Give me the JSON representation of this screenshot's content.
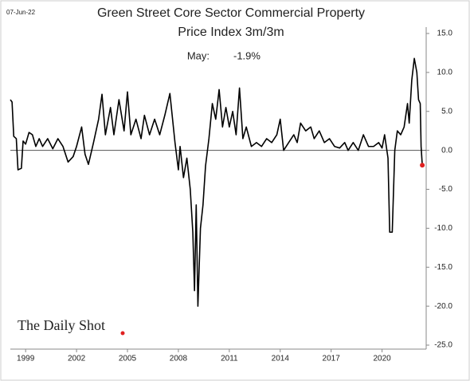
{
  "chart_data": {
    "type": "line",
    "date": "07-Jun-22",
    "title": "Green Street Core Sector Commercial Property",
    "subtitle": "Price Index 3m/3m",
    "annotation": {
      "label": "May:",
      "text": "-1.9%"
    },
    "source": "The Daily Shot",
    "x": [
      1998.1,
      1998.2,
      1998.3,
      1998.45,
      1998.55,
      1998.75,
      1998.85,
      1999.0,
      1999.2,
      1999.4,
      1999.6,
      1999.8,
      2000.0,
      2000.3,
      2000.6,
      2000.9,
      2001.2,
      2001.5,
      2001.8,
      2002.0,
      2002.3,
      2002.5,
      2002.7,
      2003.0,
      2003.3,
      2003.5,
      2003.7,
      2004.0,
      2004.2,
      2004.5,
      2004.8,
      2005.0,
      2005.2,
      2005.5,
      2005.8,
      2006.0,
      2006.3,
      2006.6,
      2006.9,
      2007.2,
      2007.5,
      2007.8,
      2008.0,
      2008.1,
      2008.3,
      2008.5,
      2008.7,
      2008.85,
      2008.95,
      2009.05,
      2009.15,
      2009.3,
      2009.45,
      2009.6,
      2009.8,
      2010.0,
      2010.2,
      2010.4,
      2010.6,
      2010.8,
      2011.0,
      2011.2,
      2011.4,
      2011.6,
      2011.8,
      2012.0,
      2012.3,
      2012.6,
      2012.9,
      2013.2,
      2013.5,
      2013.8,
      2014.0,
      2014.2,
      2014.5,
      2014.8,
      2015.0,
      2015.2,
      2015.5,
      2015.8,
      2016.0,
      2016.3,
      2016.6,
      2016.9,
      2017.2,
      2017.5,
      2017.8,
      2018.0,
      2018.3,
      2018.6,
      2018.9,
      2019.2,
      2019.5,
      2019.8,
      2020.0,
      2020.15,
      2020.35,
      2020.45,
      2020.6,
      2020.75,
      2020.9,
      2021.1,
      2021.3,
      2021.5,
      2021.6,
      2021.75,
      2021.9,
      2022.05,
      2022.15,
      2022.25,
      2022.3,
      2022.37
    ],
    "series": [
      {
        "name": "Price Index 3m/3m",
        "color": "#000000",
        "end_color": "#e02020",
        "values": [
          6.5,
          6.2,
          1.8,
          1.5,
          -2.5,
          -2.3,
          1.2,
          0.8,
          2.3,
          2.0,
          0.5,
          1.5,
          0.5,
          1.5,
          0.2,
          1.5,
          0.5,
          -1.5,
          -0.8,
          0.5,
          3.0,
          -0.5,
          -1.8,
          1.0,
          4.0,
          7.2,
          2.0,
          5.5,
          2.0,
          6.5,
          2.5,
          7.5,
          2.0,
          4.0,
          1.5,
          4.5,
          2.0,
          4.0,
          2.0,
          4.5,
          7.3,
          1.0,
          -2.5,
          0.5,
          -3.5,
          -1.0,
          -5.0,
          -10.5,
          -18.0,
          -7.0,
          -20.0,
          -10.0,
          -7.0,
          -2.0,
          1.5,
          6.0,
          4.0,
          7.8,
          3.0,
          5.5,
          3.0,
          5.0,
          2.0,
          8.0,
          1.5,
          3.0,
          0.5,
          1.0,
          0.5,
          1.5,
          1.0,
          2.0,
          4.0,
          0.0,
          1.0,
          2.0,
          1.0,
          3.5,
          2.5,
          3.0,
          1.5,
          2.5,
          1.0,
          1.5,
          0.5,
          0.3,
          1.0,
          0.0,
          1.0,
          0.0,
          2.0,
          0.5,
          0.5,
          1.0,
          0.3,
          2.0,
          -1.0,
          -10.5,
          -10.5,
          0.0,
          2.5,
          2.0,
          3.0,
          6.0,
          3.5,
          9.0,
          11.8,
          10.0,
          6.5,
          6.0,
          0.5,
          -1.9
        ]
      }
    ],
    "xlim": [
      1998.1,
      2022.6
    ],
    "xticks": [
      1999,
      2002,
      2005,
      2008,
      2011,
      2014,
      2017,
      2020
    ],
    "ylim": [
      -25,
      15
    ],
    "yticks": [
      {
        "value": 15,
        "label": "15.0"
      },
      {
        "value": 10,
        "label": "10.0"
      },
      {
        "value": 5,
        "label": "5.0"
      },
      {
        "value": 0,
        "label": "0.0"
      },
      {
        "value": -5,
        "label": "-5.0"
      },
      {
        "value": -10,
        "label": "-10.0"
      },
      {
        "value": -15,
        "label": "-15.0"
      },
      {
        "value": -20,
        "label": "-20.0"
      },
      {
        "value": -25,
        "label": "-25.0"
      }
    ],
    "y_axis_side": "right"
  }
}
